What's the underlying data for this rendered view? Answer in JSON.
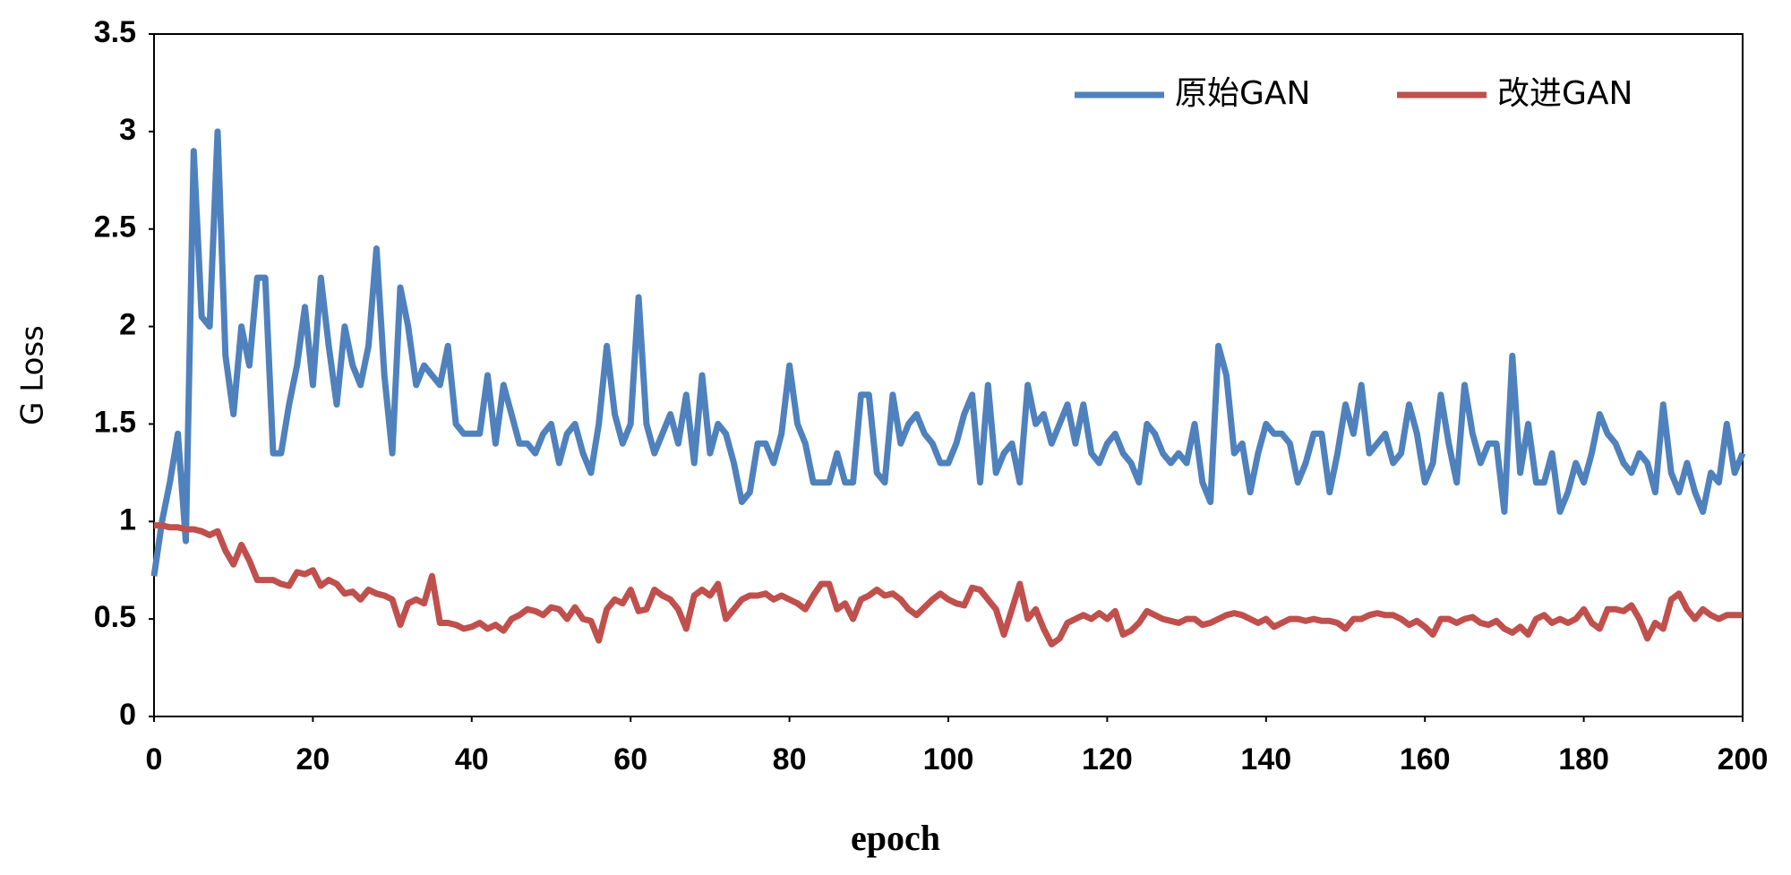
{
  "chart_data": {
    "type": "line",
    "xlabel": "epoch",
    "ylabel": "G Loss",
    "xlim": [
      0,
      200
    ],
    "xticks": [
      0,
      20,
      40,
      60,
      80,
      100,
      120,
      140,
      160,
      180,
      200
    ],
    "ylim": [
      0,
      3.5
    ],
    "yticks": [
      0,
      0.5,
      1,
      1.5,
      2,
      2.5,
      3,
      3.5
    ],
    "legend": "upper right",
    "x": [
      0,
      1,
      2,
      3,
      4,
      5,
      6,
      7,
      8,
      9,
      10,
      11,
      12,
      13,
      14,
      15,
      16,
      17,
      18,
      19,
      20,
      21,
      22,
      23,
      24,
      25,
      26,
      27,
      28,
      29,
      30,
      31,
      32,
      33,
      34,
      35,
      36,
      37,
      38,
      39,
      40,
      41,
      42,
      43,
      44,
      45,
      46,
      47,
      48,
      49,
      50,
      51,
      52,
      53,
      54,
      55,
      56,
      57,
      58,
      59,
      60,
      61,
      62,
      63,
      64,
      65,
      66,
      67,
      68,
      69,
      70,
      71,
      72,
      73,
      74,
      75,
      76,
      77,
      78,
      79,
      80,
      81,
      82,
      83,
      84,
      85,
      86,
      87,
      88,
      89,
      90,
      91,
      92,
      93,
      94,
      95,
      96,
      97,
      98,
      99,
      100,
      101,
      102,
      103,
      104,
      105,
      106,
      107,
      108,
      109,
      110,
      111,
      112,
      113,
      114,
      115,
      116,
      117,
      118,
      119,
      120,
      121,
      122,
      123,
      124,
      125,
      126,
      127,
      128,
      129,
      130,
      131,
      132,
      133,
      134,
      135,
      136,
      137,
      138,
      139,
      140,
      141,
      142,
      143,
      144,
      145,
      146,
      147,
      148,
      149,
      150,
      151,
      152,
      153,
      154,
      155,
      156,
      157,
      158,
      159,
      160,
      161,
      162,
      163,
      164,
      165,
      166,
      167,
      168,
      169,
      170,
      171,
      172,
      173,
      174,
      175,
      176,
      177,
      178,
      179,
      180,
      181,
      182,
      183,
      184,
      185,
      186,
      187,
      188,
      189,
      190,
      191,
      192,
      193,
      194,
      195,
      196,
      197,
      198,
      199,
      200
    ],
    "series": [
      {
        "name": "原始GAN",
        "color": "#4f81bd",
        "values": [
          0.72,
          1.0,
          1.2,
          1.45,
          0.9,
          2.9,
          2.05,
          2.0,
          3.0,
          1.85,
          1.55,
          2.0,
          1.8,
          2.25,
          2.25,
          1.35,
          1.35,
          1.6,
          1.8,
          2.1,
          1.7,
          2.25,
          1.9,
          1.6,
          2.0,
          1.8,
          1.7,
          1.9,
          2.4,
          1.75,
          1.35,
          2.2,
          2.0,
          1.7,
          1.8,
          1.75,
          1.7,
          1.9,
          1.5,
          1.45,
          1.45,
          1.45,
          1.75,
          1.4,
          1.7,
          1.55,
          1.4,
          1.4,
          1.35,
          1.45,
          1.5,
          1.3,
          1.45,
          1.5,
          1.35,
          1.25,
          1.5,
          1.9,
          1.55,
          1.4,
          1.5,
          2.15,
          1.5,
          1.35,
          1.45,
          1.55,
          1.4,
          1.65,
          1.3,
          1.75,
          1.35,
          1.5,
          1.45,
          1.3,
          1.1,
          1.15,
          1.4,
          1.4,
          1.3,
          1.45,
          1.8,
          1.5,
          1.4,
          1.2,
          1.2,
          1.2,
          1.35,
          1.2,
          1.2,
          1.65,
          1.65,
          1.25,
          1.2,
          1.65,
          1.4,
          1.5,
          1.55,
          1.45,
          1.4,
          1.3,
          1.3,
          1.4,
          1.55,
          1.65,
          1.2,
          1.7,
          1.25,
          1.35,
          1.4,
          1.2,
          1.7,
          1.5,
          1.55,
          1.4,
          1.5,
          1.6,
          1.4,
          1.6,
          1.35,
          1.3,
          1.4,
          1.45,
          1.35,
          1.3,
          1.2,
          1.5,
          1.45,
          1.35,
          1.3,
          1.35,
          1.3,
          1.5,
          1.2,
          1.1,
          1.9,
          1.75,
          1.35,
          1.4,
          1.15,
          1.35,
          1.5,
          1.45,
          1.45,
          1.4,
          1.2,
          1.3,
          1.45,
          1.45,
          1.15,
          1.35,
          1.6,
          1.45,
          1.7,
          1.35,
          1.4,
          1.45,
          1.3,
          1.35,
          1.6,
          1.45,
          1.2,
          1.3,
          1.65,
          1.4,
          1.2,
          1.7,
          1.45,
          1.3,
          1.4,
          1.4,
          1.05,
          1.85,
          1.25,
          1.5,
          1.2,
          1.2,
          1.35,
          1.05,
          1.15,
          1.3,
          1.2,
          1.35,
          1.55,
          1.45,
          1.4,
          1.3,
          1.25,
          1.35,
          1.3,
          1.15,
          1.6,
          1.25,
          1.15,
          1.3,
          1.15,
          1.05,
          1.25,
          1.2,
          1.5,
          1.25,
          1.35
        ]
      },
      {
        "name": "改进GAN",
        "color": "#c0504d",
        "values": [
          0.98,
          0.98,
          0.97,
          0.97,
          0.96,
          0.96,
          0.95,
          0.93,
          0.95,
          0.85,
          0.78,
          0.88,
          0.8,
          0.7,
          0.7,
          0.7,
          0.68,
          0.67,
          0.74,
          0.73,
          0.75,
          0.67,
          0.7,
          0.68,
          0.63,
          0.64,
          0.6,
          0.65,
          0.63,
          0.62,
          0.6,
          0.47,
          0.58,
          0.6,
          0.58,
          0.72,
          0.48,
          0.48,
          0.47,
          0.45,
          0.46,
          0.48,
          0.45,
          0.47,
          0.44,
          0.5,
          0.52,
          0.55,
          0.54,
          0.52,
          0.56,
          0.55,
          0.5,
          0.56,
          0.5,
          0.49,
          0.39,
          0.55,
          0.6,
          0.58,
          0.65,
          0.54,
          0.55,
          0.65,
          0.62,
          0.6,
          0.55,
          0.45,
          0.62,
          0.65,
          0.62,
          0.68,
          0.5,
          0.55,
          0.6,
          0.62,
          0.62,
          0.63,
          0.6,
          0.62,
          0.6,
          0.58,
          0.55,
          0.62,
          0.68,
          0.68,
          0.55,
          0.58,
          0.5,
          0.6,
          0.62,
          0.65,
          0.62,
          0.63,
          0.6,
          0.55,
          0.52,
          0.56,
          0.6,
          0.63,
          0.6,
          0.58,
          0.57,
          0.66,
          0.65,
          0.6,
          0.55,
          0.42,
          0.55,
          0.68,
          0.5,
          0.55,
          0.45,
          0.37,
          0.4,
          0.48,
          0.5,
          0.52,
          0.5,
          0.53,
          0.5,
          0.54,
          0.42,
          0.44,
          0.48,
          0.54,
          0.52,
          0.5,
          0.49,
          0.48,
          0.5,
          0.5,
          0.47,
          0.48,
          0.5,
          0.52,
          0.53,
          0.52,
          0.5,
          0.48,
          0.5,
          0.46,
          0.48,
          0.5,
          0.5,
          0.49,
          0.5,
          0.49,
          0.49,
          0.48,
          0.45,
          0.5,
          0.5,
          0.52,
          0.53,
          0.52,
          0.52,
          0.5,
          0.47,
          0.49,
          0.46,
          0.42,
          0.5,
          0.5,
          0.48,
          0.5,
          0.51,
          0.48,
          0.47,
          0.49,
          0.45,
          0.43,
          0.46,
          0.42,
          0.5,
          0.52,
          0.48,
          0.5,
          0.48,
          0.5,
          0.55,
          0.48,
          0.45,
          0.55,
          0.55,
          0.54,
          0.57,
          0.5,
          0.4,
          0.48,
          0.45,
          0.6,
          0.63,
          0.55,
          0.5,
          0.55,
          0.52,
          0.5,
          0.52,
          0.52,
          0.52
        ]
      }
    ]
  }
}
